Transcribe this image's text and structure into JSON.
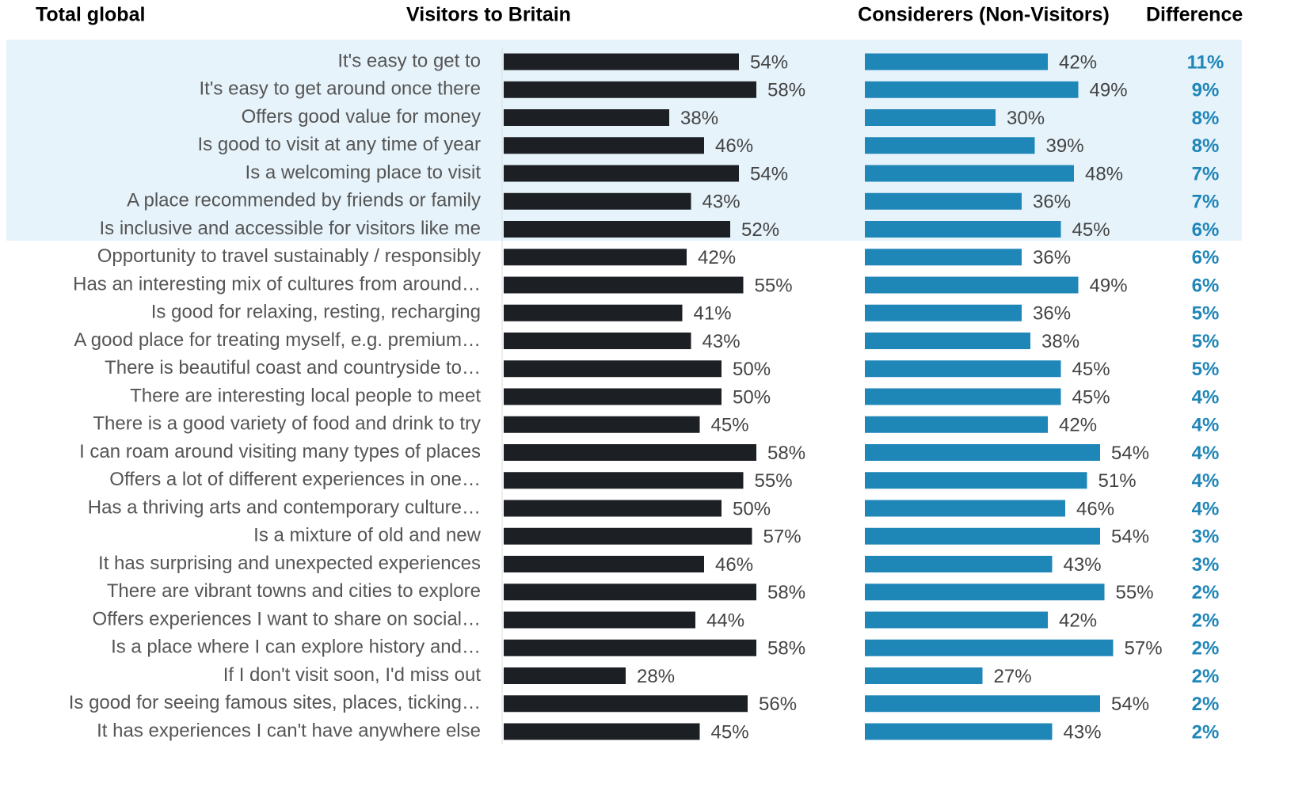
{
  "chart_data": {
    "type": "bar",
    "title": "Total global",
    "categories": [
      "It's easy to get to",
      "It's easy to get around once there",
      "Offers good value for money",
      "Is good to visit at any time of year",
      "Is a welcoming place to visit",
      "A place recommended by friends or family",
      "Is inclusive and accessible for visitors like me",
      "Opportunity to travel sustainably / responsibly",
      "Has an interesting mix of cultures from around…",
      "Is good for relaxing, resting, recharging",
      "A good place for treating myself, e.g. premium…",
      "There is beautiful coast and countryside to…",
      "There are interesting local people to meet",
      "There is a good variety of food and drink to try",
      "I can roam around visiting many types of places",
      "Offers a lot of different experiences in one…",
      "Has a thriving arts and contemporary culture…",
      "Is a mixture of old and new",
      "It has surprising and unexpected experiences",
      "There are vibrant towns and cities to explore",
      "Offers experiences I want to share on social…",
      "Is a place where I can explore history and…",
      "If I don't visit soon, I'd miss out",
      "Is good for seeing famous sites, places, ticking…",
      "It has experiences I can't have anywhere else"
    ],
    "series": [
      {
        "name": "Visitors to Britain",
        "color": "#1c1f24",
        "values": [
          54,
          58,
          38,
          46,
          54,
          43,
          52,
          42,
          55,
          41,
          43,
          50,
          50,
          45,
          58,
          55,
          50,
          57,
          46,
          58,
          44,
          58,
          28,
          56,
          45
        ],
        "value_labels": [
          "54%",
          "58%",
          "38%",
          "46%",
          "54%",
          "43%",
          "52%",
          "42%",
          "55%",
          "41%",
          "43%",
          "50%",
          "50%",
          "45%",
          "58%",
          "55%",
          "50%",
          "57%",
          "46%",
          "58%",
          "44%",
          "58%",
          "28%",
          "56%",
          "45%"
        ]
      },
      {
        "name": "Considerers (Non-Visitors)",
        "color": "#1f86b8",
        "values": [
          42,
          49,
          30,
          39,
          48,
          36,
          45,
          36,
          49,
          36,
          38,
          45,
          45,
          42,
          54,
          51,
          46,
          54,
          43,
          55,
          42,
          57,
          27,
          54,
          43
        ],
        "value_labels": [
          "42%",
          "49%",
          "30%",
          "39%",
          "48%",
          "36%",
          "45%",
          "36%",
          "49%",
          "36%",
          "38%",
          "45%",
          "45%",
          "42%",
          "54%",
          "51%",
          "46%",
          "54%",
          "43%",
          "55%",
          "42%",
          "57%",
          "27%",
          "54%",
          "43%"
        ]
      },
      {
        "name": "Difference",
        "color": "#1f86b8",
        "values": [
          11,
          9,
          8,
          8,
          7,
          7,
          6,
          6,
          6,
          5,
          5,
          5,
          4,
          4,
          4,
          4,
          4,
          3,
          3,
          2,
          2,
          2,
          2,
          2,
          2
        ],
        "value_labels": [
          "11%",
          "9%",
          "8%",
          "8%",
          "7%",
          "7%",
          "6%",
          "6%",
          "6%",
          "5%",
          "5%",
          "5%",
          "4%",
          "4%",
          "4%",
          "4%",
          "4%",
          "3%",
          "3%",
          "2%",
          "2%",
          "2%",
          "2%",
          "2%",
          "2%"
        ]
      }
    ]
  }
}
